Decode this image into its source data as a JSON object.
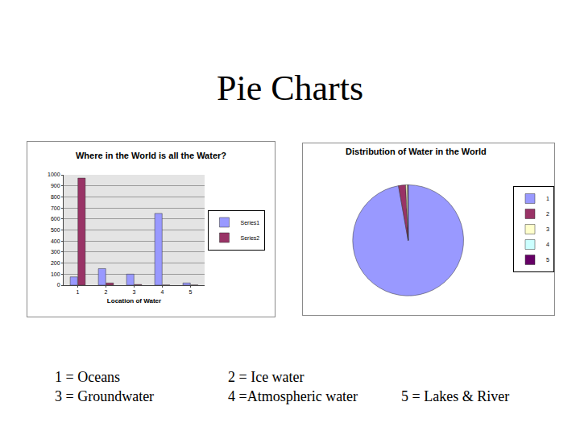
{
  "title": "Pie Charts",
  "chart_data": [
    {
      "type": "bar",
      "title": "Where in the World is all the Water?",
      "x_label": "Location of Water",
      "categories": [
        "1",
        "2",
        "3",
        "4",
        "5"
      ],
      "series": [
        {
          "name": "Series1",
          "color": "#9999ff",
          "values": [
            75,
            150,
            100,
            650,
            20
          ]
        },
        {
          "name": "Series2",
          "color": "#993366",
          "values": [
            970,
            20,
            6,
            1,
            1
          ]
        }
      ],
      "ylim": [
        0,
        1000
      ],
      "yticks": [
        0,
        100,
        200,
        300,
        400,
        500,
        600,
        700,
        800,
        900,
        1000
      ],
      "grid": true,
      "legend": "right"
    },
    {
      "type": "pie",
      "title": "Distribution of Water in the World",
      "categories": [
        "1",
        "2",
        "3",
        "4",
        "5"
      ],
      "values": [
        97.2,
        2.1,
        0.6,
        0.01,
        0.09
      ],
      "colors": [
        "#9999ff",
        "#993366",
        "#ffffcc",
        "#ccffff",
        "#660066"
      ],
      "legend": "right"
    }
  ],
  "key": [
    [
      "1 = Oceans",
      "3 = Groundwater"
    ],
    [
      "2 = Ice water",
      "4 =Atmospheric water"
    ],
    [
      "5 = Lakes & River"
    ]
  ]
}
